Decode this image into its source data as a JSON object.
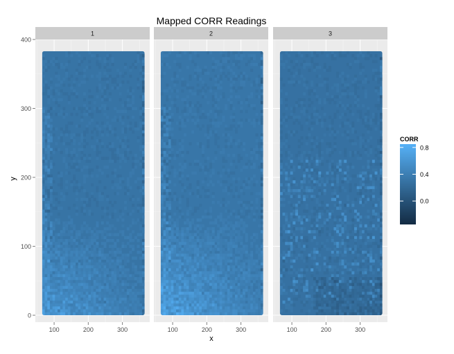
{
  "chart_data": {
    "type": "heatmap",
    "title": "Mapped CORR Readings",
    "xlabel": "x",
    "ylabel": "y",
    "facets": [
      "1",
      "2",
      "3"
    ],
    "x_ticks": [
      100,
      200,
      300
    ],
    "y_ticks": [
      0,
      100,
      200,
      300,
      400
    ],
    "xlim": [
      45,
      380
    ],
    "ylim": [
      -10,
      400
    ],
    "data_extent": {
      "x": [
        65,
        365
      ],
      "y": [
        0,
        383
      ]
    },
    "grid": true,
    "legend": {
      "title": "CORR",
      "placement": "right",
      "ticks": [
        0.8,
        0.4,
        0.0
      ],
      "range": [
        -0.35,
        0.85
      ],
      "colors": {
        "low": "#132B43",
        "high": "#56B1F7"
      }
    },
    "panels": [
      {
        "facet": "1",
        "base_corr": 0.3,
        "bright_region": "lower-left",
        "bright_peak": 0.62
      },
      {
        "facet": "2",
        "base_corr": 0.32,
        "bright_region": "lower-left",
        "bright_peak": 0.72
      },
      {
        "facet": "3",
        "base_corr": 0.28,
        "bright_region": "scattered",
        "bright_peak": 0.5
      }
    ]
  }
}
